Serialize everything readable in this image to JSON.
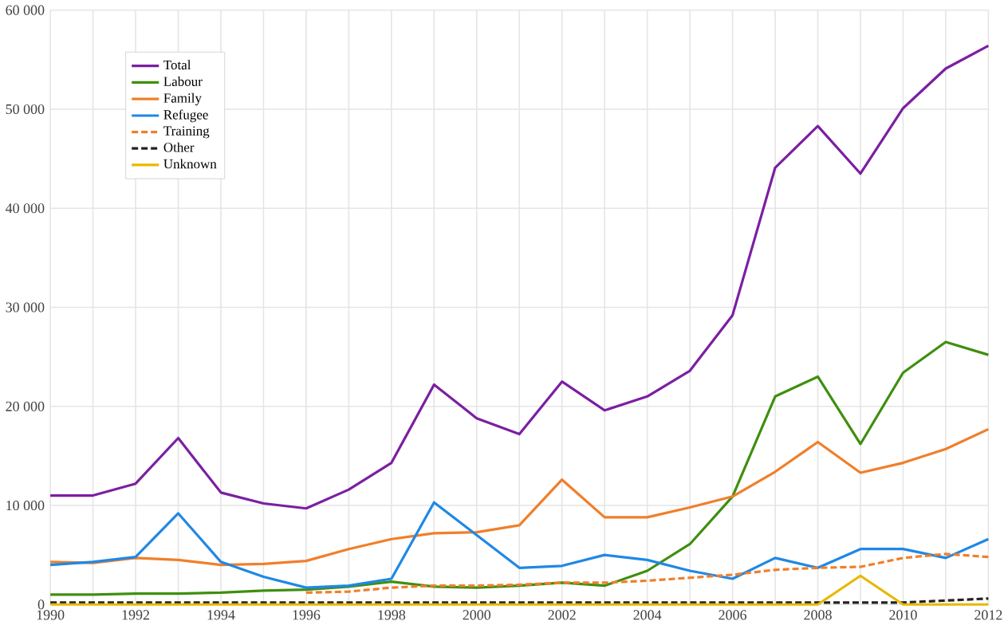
{
  "chart_data": {
    "type": "line",
    "x": [
      1990,
      1991,
      1992,
      1993,
      1994,
      1995,
      1996,
      1997,
      1998,
      1999,
      2000,
      2001,
      2002,
      2003,
      2004,
      2005,
      2006,
      2007,
      2008,
      2009,
      2010,
      2011,
      2012
    ],
    "series": [
      {
        "name": "Total",
        "color": "#7b1fa2",
        "line_style": "solid",
        "values": [
          11000,
          11000,
          12200,
          16800,
          11300,
          10200,
          9700,
          11600,
          14300,
          22200,
          18800,
          17200,
          22500,
          19600,
          21000,
          23600,
          29200,
          44100,
          48300,
          43500,
          50100,
          54100,
          56400
        ]
      },
      {
        "name": "Labour",
        "color": "#3f8f0f",
        "line_style": "solid",
        "values": [
          1000,
          1000,
          1100,
          1100,
          1200,
          1400,
          1500,
          1800,
          2300,
          1800,
          1700,
          1900,
          2200,
          1900,
          3400,
          6100,
          10900,
          21000,
          23000,
          16200,
          23400,
          26500,
          25200
        ]
      },
      {
        "name": "Family",
        "color": "#f07f2a",
        "line_style": "solid",
        "values": [
          4300,
          4200,
          4700,
          4500,
          4000,
          4100,
          4400,
          5600,
          6600,
          7200,
          7300,
          8000,
          12600,
          8800,
          8800,
          9800,
          10900,
          13400,
          16400,
          13300,
          14300,
          15700,
          17700
        ]
      },
      {
        "name": "Refugee",
        "color": "#1f88e5",
        "line_style": "solid",
        "values": [
          4000,
          4300,
          4800,
          9200,
          4300,
          2800,
          1700,
          1900,
          2600,
          10300,
          7000,
          3700,
          3900,
          5000,
          4500,
          3400,
          2600,
          4700,
          3700,
          5600,
          5600,
          4700,
          6600
        ]
      },
      {
        "name": "Training",
        "color": "#f07f2a",
        "line_style": "dashed",
        "values": [
          null,
          null,
          null,
          null,
          null,
          null,
          1200,
          1300,
          1700,
          1900,
          1900,
          2000,
          2200,
          2200,
          2400,
          2700,
          3000,
          3500,
          3700,
          3800,
          4700,
          5100,
          4800
        ]
      },
      {
        "name": "Other",
        "color": "#222222",
        "line_style": "dashed",
        "values": [
          200,
          200,
          200,
          200,
          200,
          200,
          200,
          200,
          200,
          200,
          200,
          200,
          200,
          200,
          200,
          200,
          200,
          200,
          200,
          200,
          200,
          400,
          600
        ]
      },
      {
        "name": "Unknown",
        "color": "#e8b800",
        "line_style": "solid",
        "values": [
          0,
          0,
          0,
          0,
          0,
          0,
          0,
          0,
          0,
          0,
          0,
          0,
          0,
          0,
          0,
          0,
          0,
          0,
          0,
          2900,
          0,
          0,
          0
        ]
      }
    ],
    "xlim": [
      1990,
      2012
    ],
    "xticks": [
      1990,
      {
        "value": 1991,
        "label": null
      },
      1992,
      {
        "value": 1993,
        "label": null
      },
      1994,
      {
        "value": 1995,
        "label": null
      },
      1996,
      {
        "value": 1997,
        "label": null
      },
      1998,
      {
        "value": 1999,
        "label": null
      },
      2000,
      {
        "value": 2001,
        "label": null
      },
      2002,
      {
        "value": 2003,
        "label": null
      },
      2004,
      {
        "value": 2005,
        "label": null
      },
      2006,
      {
        "value": 2007,
        "label": null
      },
      2008,
      {
        "value": 2009,
        "label": null
      },
      2010,
      {
        "value": 2011,
        "label": null
      },
      2012
    ],
    "ylim": [
      0,
      60000
    ],
    "yticks": [
      0,
      {
        "value": 10000,
        "label": "10 000"
      },
      {
        "value": 20000,
        "label": "20 000"
      },
      {
        "value": 30000,
        "label": "30 000"
      },
      {
        "value": 40000,
        "label": "40 000"
      },
      {
        "value": 50000,
        "label": "50 000"
      },
      {
        "value": 60000,
        "label": "60 000"
      }
    ],
    "grid": true,
    "legend": "top left",
    "marker": "none"
  }
}
